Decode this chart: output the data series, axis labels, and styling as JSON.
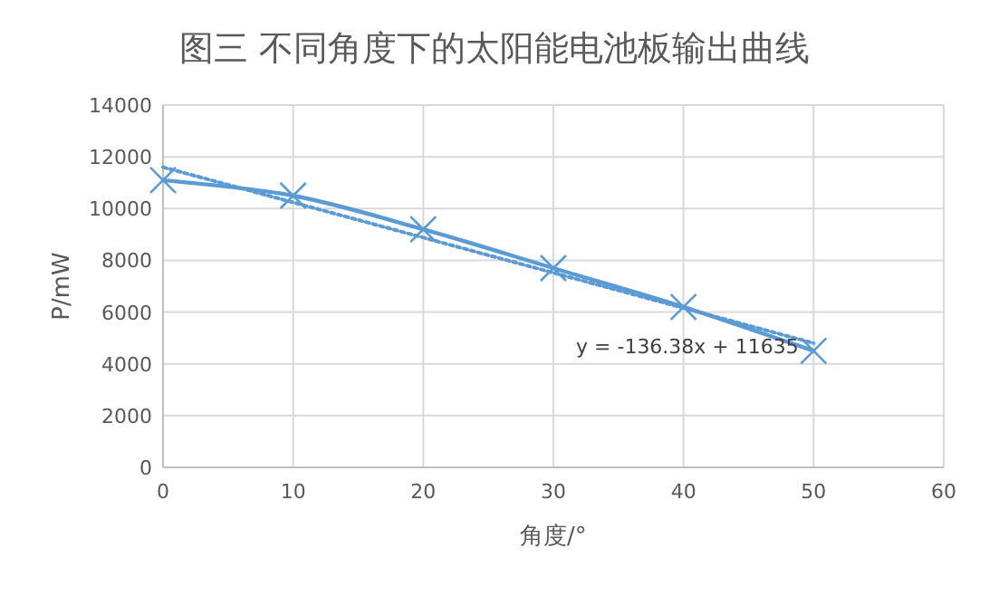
{
  "chart_data": {
    "type": "line",
    "title": "图三   不同角度下的太阳能电池板输出曲线",
    "xlabel": "角度/°",
    "ylabel": "P/mW",
    "x": [
      0,
      10,
      20,
      30,
      40,
      50
    ],
    "series": [
      {
        "color": "#5b9bd5",
        "values": [
          11100,
          10500,
          9200,
          7700,
          6200,
          4500
        ],
        "marker": "cross",
        "line_style": "solid"
      },
      {
        "color": "#5b9bd5",
        "x": [
          0,
          50
        ],
        "values": [
          11600,
          4800
        ],
        "marker": "none",
        "line_style": "dotted"
      }
    ],
    "annotations": [
      "y = -136.38x + 11635"
    ],
    "xlim": [
      0,
      60
    ],
    "xticks": [
      0,
      10,
      20,
      30,
      40,
      50,
      60
    ],
    "ylim": [
      0,
      14000
    ],
    "yticks": [
      0,
      2000,
      4000,
      6000,
      8000,
      10000,
      12000,
      14000
    ],
    "grid": true
  }
}
